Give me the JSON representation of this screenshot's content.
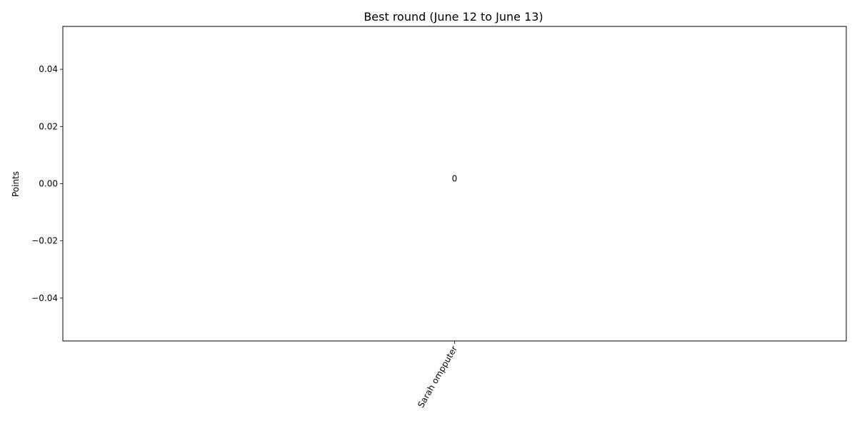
{
  "chart_data": {
    "type": "bar",
    "title": "Best round (June 12 to June 13)",
    "xlabel": "",
    "ylabel": "Points",
    "categories": [
      "Sarah ompputer"
    ],
    "values": [
      0
    ],
    "data_labels": [
      "0"
    ],
    "ylim": [
      -0.055,
      0.055
    ],
    "yticks": [
      -0.04,
      -0.02,
      0.0,
      0.02,
      0.04
    ],
    "ytick_labels": [
      "−0.04",
      "−0.02",
      "0.00",
      "0.02",
      "0.04"
    ],
    "xtick_rotation_deg": 60,
    "grid": false,
    "legend": "none",
    "colors": {
      "bar": "#1f77b4",
      "axis": "#000000",
      "background": "#ffffff"
    }
  }
}
